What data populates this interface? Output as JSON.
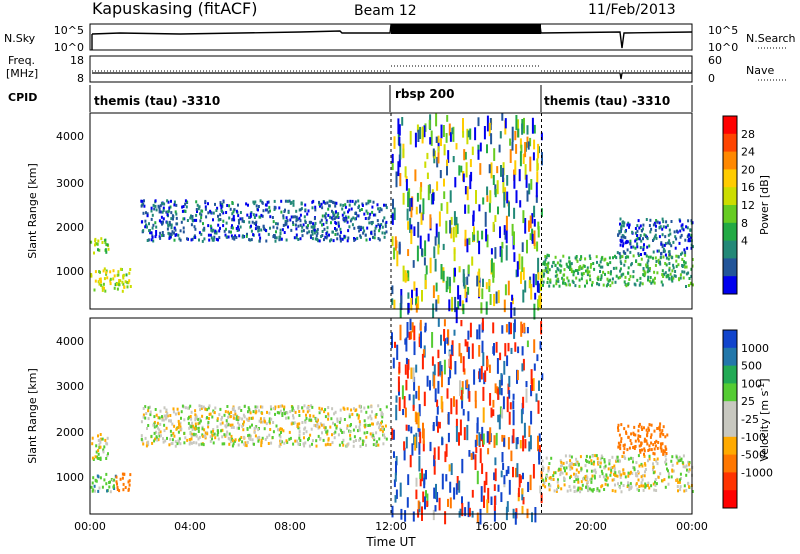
{
  "header": {
    "station": "Kapuskasing (fitACF)",
    "beam": "Beam 12",
    "date": "11/Feb/2013"
  },
  "noise_panel": {
    "left_label": "N.Sky",
    "left_ticks": [
      "10^5",
      "10^0"
    ],
    "right_ticks": [
      "10^5",
      "10^0"
    ],
    "right_label": "N.Search"
  },
  "freq_panel": {
    "left_label_1": "Freq.",
    "left_label_2": "[MHz]",
    "left_ticks": [
      "18",
      "8"
    ],
    "right_ticks": [
      "60",
      "0"
    ],
    "right_label": "Nave"
  },
  "cpid_panel": {
    "label": "CPID",
    "segments": [
      "themis (tau) -3310",
      "rbsp 200",
      "themis (tau) -3310"
    ]
  },
  "x_axis": {
    "label": "Time UT",
    "ticks": [
      "00:00",
      "04:00",
      "08:00",
      "12:00",
      "16:00",
      "20:00",
      "00:00"
    ]
  },
  "power_panel": {
    "ylabel": "Slant Range [km]",
    "yticks": [
      "4000",
      "3000",
      "2000",
      "1000"
    ],
    "colorbar_label": "Power [dB]",
    "colorbar_ticks": [
      "28",
      "24",
      "20",
      "16",
      "12",
      "8",
      "4"
    ],
    "colorbar_colors": [
      "#ff0000",
      "#ff4400",
      "#ff8800",
      "#ffcc00",
      "#ccdd00",
      "#66cc22",
      "#22aa44",
      "#228877",
      "#225599",
      "#0000ee"
    ]
  },
  "velocity_panel": {
    "ylabel": "Slant Range [km]",
    "yticks": [
      "4000",
      "3000",
      "2000",
      "1000"
    ],
    "colorbar_label": "Velocity [m s^-1]",
    "colorbar_ticks": [
      "1000",
      "500",
      "100",
      "25",
      "-25",
      "-100",
      "-500",
      "-1000"
    ],
    "colorbar_colors": [
      "#1144cc",
      "#2277aa",
      "#22aa55",
      "#55cc33",
      "#c8c8c0",
      "#c8c8c0",
      "#ffaa00",
      "#ff7700",
      "#ff3300",
      "#ff0000"
    ]
  },
  "chart_data": [
    {
      "type": "heatmap",
      "title": "Power",
      "xlabel": "Time UT",
      "ylabel": "Slant Range [km]",
      "xlim": [
        "00:00",
        "24:00"
      ],
      "ylim": [
        180,
        4500
      ],
      "colorbar": {
        "label": "Power [dB]",
        "range": [
          0,
          30
        ]
      },
      "regions": [
        {
          "t": [
            0.0,
            0.7
          ],
          "range": [
            1400,
            1800
          ],
          "value": 14
        },
        {
          "t": [
            0.0,
            1.6
          ],
          "range": [
            600,
            1100
          ],
          "value": 16
        },
        {
          "t": [
            2.0,
            11.8
          ],
          "range": [
            1700,
            2600
          ],
          "value": 4
        },
        {
          "t": [
            12.0,
            18.0
          ],
          "range": [
            200,
            4500
          ],
          "value": 10
        },
        {
          "t": [
            18.0,
            24.0
          ],
          "range": [
            700,
            1400
          ],
          "value": 10
        },
        {
          "t": [
            21.0,
            24.0
          ],
          "range": [
            1400,
            2200
          ],
          "value": 4
        }
      ]
    },
    {
      "type": "heatmap",
      "title": "Velocity",
      "xlabel": "Time UT",
      "ylabel": "Slant Range [km]",
      "xlim": [
        "00:00",
        "24:00"
      ],
      "ylim": [
        180,
        4500
      ],
      "colorbar": {
        "label": "Velocity [m s^-1]",
        "range": [
          -1000,
          1000
        ]
      },
      "regions": [
        {
          "t": [
            0.0,
            0.7
          ],
          "range": [
            1400,
            2000
          ],
          "value": 0
        },
        {
          "t": [
            0.0,
            1.0
          ],
          "range": [
            700,
            1100
          ],
          "value": 60
        },
        {
          "t": [
            1.0,
            1.6
          ],
          "range": [
            700,
            1100
          ],
          "value": -300
        },
        {
          "t": [
            2.0,
            11.8
          ],
          "range": [
            1700,
            2600
          ],
          "value": 0
        },
        {
          "t": [
            12.0,
            18.0
          ],
          "range": [
            200,
            4500
          ],
          "value": 0
        },
        {
          "t": [
            18.0,
            24.0
          ],
          "range": [
            700,
            1500
          ],
          "value": 0
        },
        {
          "t": [
            21.0,
            23.0
          ],
          "range": [
            1500,
            2200
          ],
          "value": -200
        }
      ]
    }
  ]
}
